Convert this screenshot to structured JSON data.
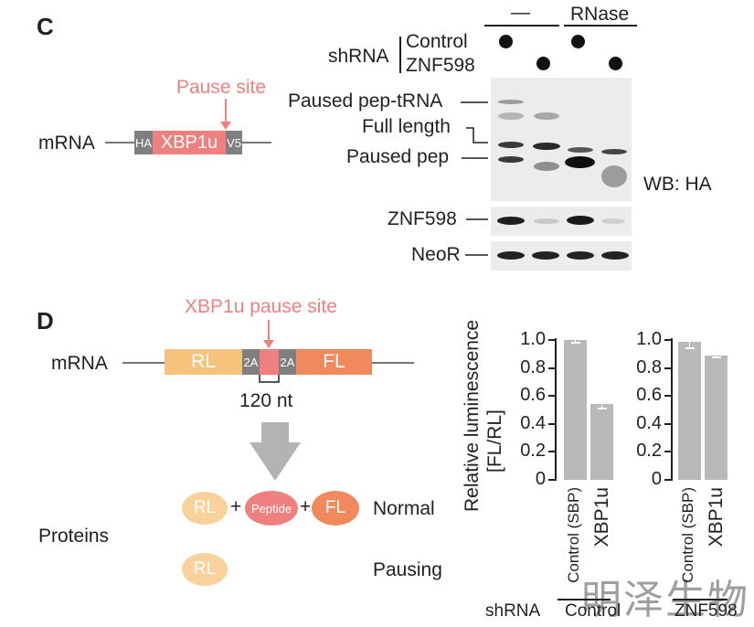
{
  "panel_c": {
    "letter": "C",
    "construct": {
      "mrna_label": "mRNA",
      "segments": {
        "ha": "HA",
        "xbp1u": "XBP1u",
        "v5": "V5"
      },
      "pause_site_label": "Pause site",
      "colors": {
        "pink": "#f08080",
        "gray": "#7f7f7f"
      }
    },
    "blot": {
      "treatment_headers": [
        "—",
        "RNase"
      ],
      "shrna_label": "shRNA",
      "shrna_rows": [
        "Control",
        "ZNF598"
      ],
      "band_labels": [
        "Paused pep-tRNA",
        "Full length",
        "Paused pep"
      ],
      "wb_label": "WB: HA",
      "lower_blots": [
        "ZNF598",
        "NeoR"
      ]
    }
  },
  "panel_d": {
    "letter": "D",
    "pause_site_label": "XBP1u pause site",
    "construct": {
      "mrna_label": "mRNA",
      "segments": [
        "RL",
        "2A",
        "2A",
        "FL"
      ],
      "length_label": "120 nt",
      "colors": {
        "rl": "#f7c37c",
        "fl": "#f08a5d",
        "pause": "#f08080",
        "linker": "#7f7f7f"
      }
    },
    "proteins_label": "Proteins",
    "outcomes": [
      {
        "label": "Normal",
        "parts": [
          "RL",
          "+",
          "Peptide",
          "+",
          "FL"
        ]
      },
      {
        "label": "Pausing",
        "parts": [
          "RL"
        ]
      }
    ]
  },
  "chart_data": [
    {
      "type": "bar",
      "ylabel": "Relative luminescence\n[FL/RL]",
      "ylim": [
        0,
        1.0
      ],
      "yticks": [
        "0",
        "0.2",
        "0.4",
        "0.6",
        "0.8",
        "1.0"
      ],
      "categories": [
        "Control (SBP)",
        "XBP1u"
      ],
      "values": [
        1.0,
        0.54
      ],
      "errors": [
        0.02,
        0.03
      ],
      "group_label": "Control"
    },
    {
      "type": "bar",
      "ylim": [
        0,
        1.0
      ],
      "yticks": [
        "0",
        "0.2",
        "0.4",
        "0.6",
        "0.8",
        "1.0"
      ],
      "categories": [
        "Control (SBP)",
        "XBP1u"
      ],
      "values": [
        0.99,
        0.89
      ],
      "errors": [
        0.05,
        0.015
      ],
      "group_label": "ZNF598"
    }
  ],
  "shrna_axis_label": "shRNA",
  "watermark": "明泽生物"
}
